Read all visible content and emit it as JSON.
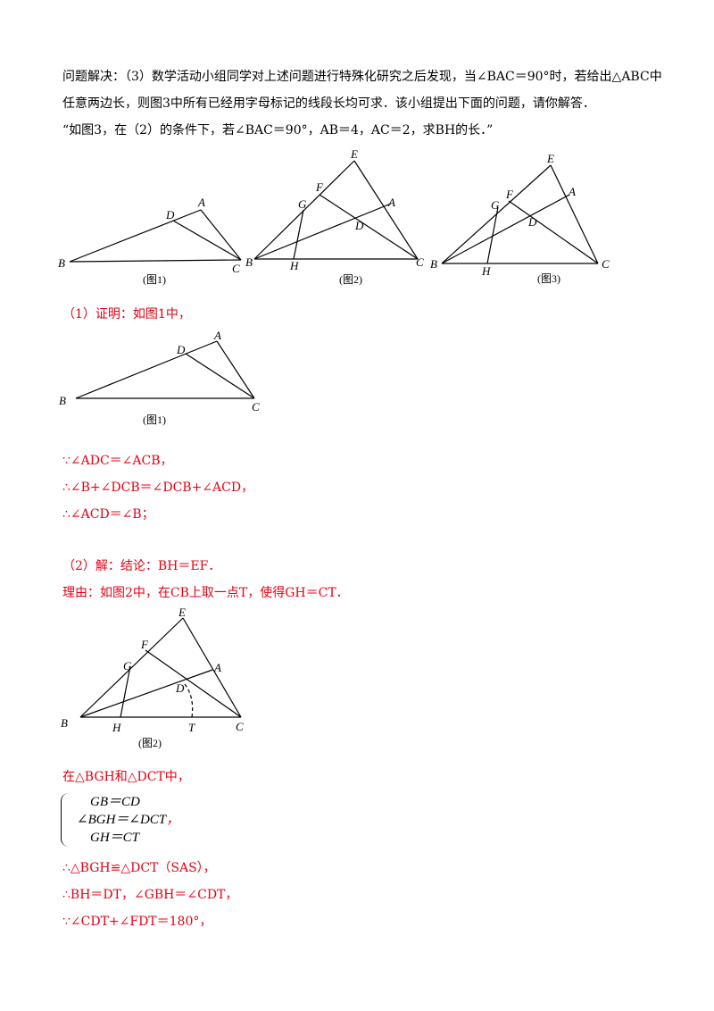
{
  "problem": {
    "line1": "问题解决：（3）数学活动小组同学对上述问题进行特殊化研究之后发现，当∠BAC＝90°时，若给出△ABC中",
    "line2": "任意两边长，则图3中所有已经用字母标记的线段长均可求．该小组提出下面的问题，请你解答．",
    "line3": "“如图3，在（2）的条件下，若∠BAC＝90°，AB＝4，AC＝2，求BH的长．”"
  },
  "figures": {
    "fig1": {
      "caption": "(图1)",
      "labels": [
        "A",
        "B",
        "C",
        "D"
      ]
    },
    "fig2": {
      "caption": "(图2)",
      "labels": [
        "A",
        "B",
        "C",
        "D",
        "E",
        "F",
        "G",
        "H"
      ]
    },
    "fig3": {
      "caption": "(图3)",
      "labels": [
        "A",
        "B",
        "C",
        "D",
        "E",
        "F",
        "G",
        "H"
      ]
    },
    "sol_fig1": {
      "caption": "(图1)",
      "labels": [
        "A",
        "B",
        "C",
        "D"
      ]
    },
    "sol_fig2": {
      "caption": "(图2)",
      "labels": [
        "A",
        "B",
        "C",
        "D",
        "E",
        "F",
        "G",
        "H",
        "T"
      ]
    }
  },
  "solution": {
    "part1_title": "（1）证明：如图1中，",
    "step1": "∵∠ADC＝∠ACB，",
    "step2": "∴∠B+∠DCB＝∠DCB+∠ACD，",
    "step3": "∴∠ACD＝∠B；",
    "part2_title": "（2）解：结论：BH＝EF．",
    "part2_reason": "理由：如图2中，在CB上取一点T，使得GH＝CT．",
    "in_triangles": "在△BGH和△DCT中，",
    "system": [
      "GB＝CD",
      "∠BGH＝∠DCT",
      "GH＝CT"
    ],
    "system_comma": "，",
    "congruent": "∴△BGH≌△DCT（SAS），",
    "conclusion1": "∴BH＝DT，∠GBH＝∠CDT，",
    "conclusion2": "∵∠CDT+∠FDT＝180°，"
  },
  "colors": {
    "solution_text": "#e60012",
    "problem_text": "#000000"
  }
}
